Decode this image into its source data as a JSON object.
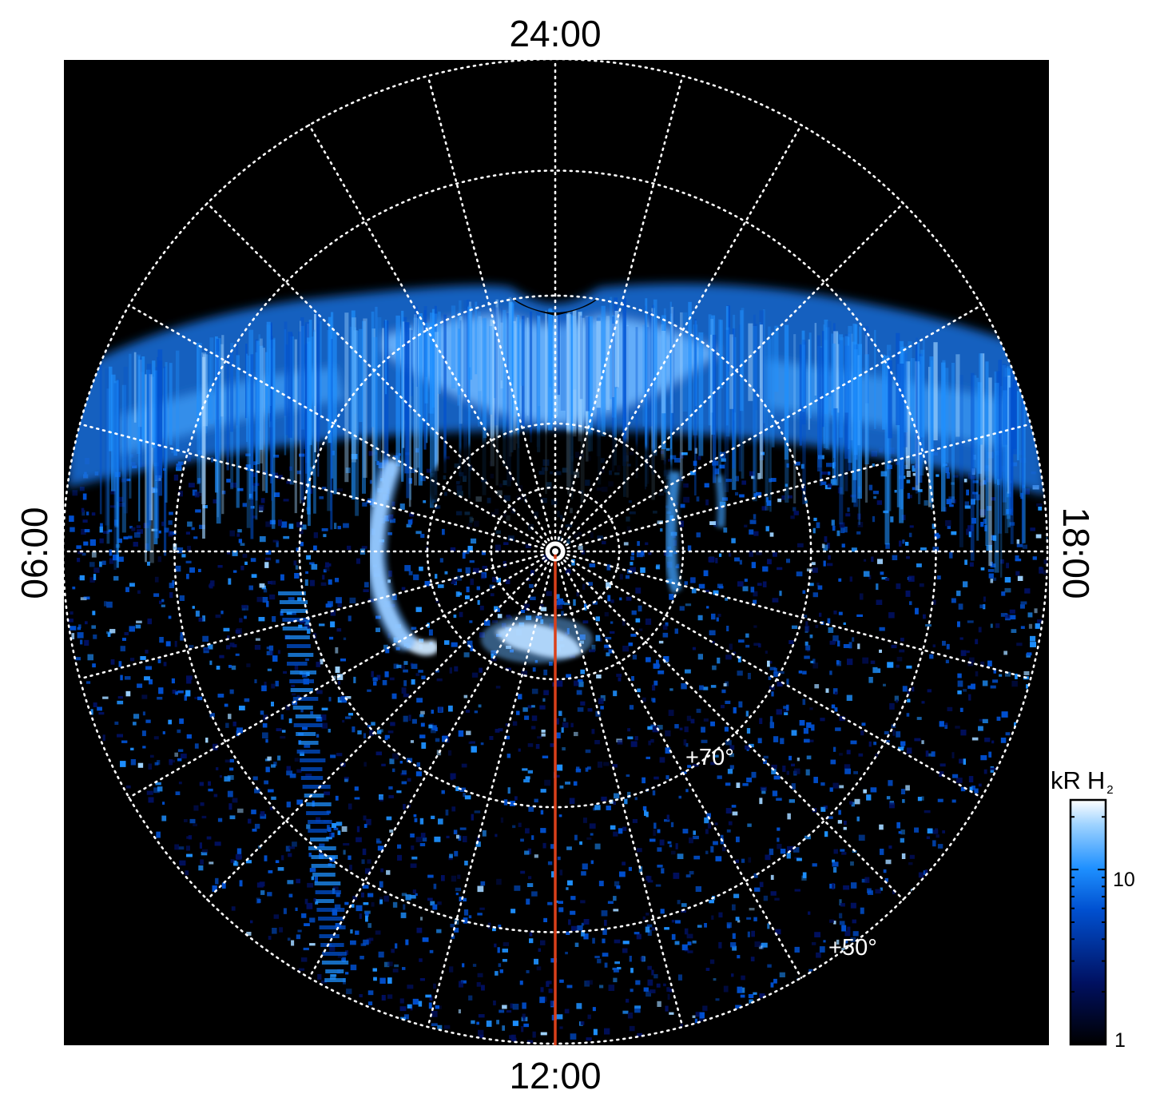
{
  "local_time_labels": {
    "top": "24:00",
    "bottom": "12:00",
    "left": "06:00",
    "right": "18:00"
  },
  "latitude_labels": {
    "inner": "+70°",
    "outer": "+50°"
  },
  "colorbar": {
    "unit": "kR",
    "species": "H",
    "species_subscript": "2",
    "scale": "log",
    "tick_labels": [
      "10",
      "1"
    ],
    "range": [
      1,
      25
    ]
  },
  "colors": {
    "background": "#000000",
    "grid": "#ffffff",
    "meridian_line": "#d9401a",
    "colormap": [
      "#000000",
      "#001060",
      "#0050d0",
      "#1e90ff",
      "#9fd3ff",
      "#ffffff"
    ]
  },
  "grid": {
    "latitude_circles_deg_step": 10,
    "local_time_meridians_hours": 1,
    "style": "dotted"
  }
}
